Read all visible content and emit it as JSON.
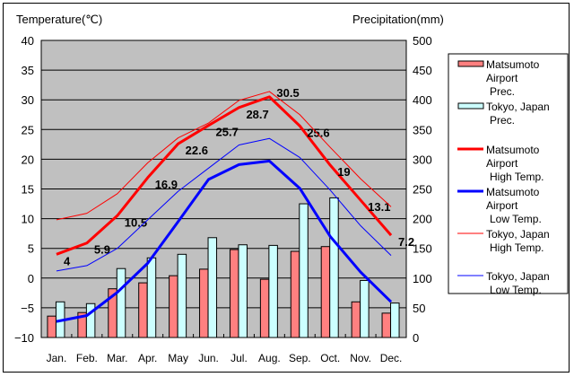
{
  "chart_data": {
    "type": "bar+line",
    "ylabel_left": "Temperature(℃)",
    "ylabel_right": "Precipitation(mm)",
    "ylim_left": [
      -10,
      40
    ],
    "yticks_left": [
      -10,
      -5,
      0,
      5,
      10,
      15,
      20,
      25,
      30,
      35,
      40
    ],
    "ylim_right": [
      0,
      500
    ],
    "yticks_right": [
      0,
      50,
      100,
      150,
      200,
      250,
      300,
      350,
      400,
      450,
      500
    ],
    "grid": true,
    "legend_position": "right",
    "categories": [
      "Jan.",
      "Feb.",
      "Mar.",
      "Apr.",
      "May",
      "Jun.",
      "Jul.",
      "Aug.",
      "Sep.",
      "Oct.",
      "Nov.",
      "Dec."
    ],
    "bar_series": [
      {
        "name": "Matsumoto Airport Prec.",
        "legend": [
          "Matsumoto",
          "Airport",
          "Prec."
        ],
        "color": "#ff8080",
        "values": [
          36,
          42,
          82,
          92,
          104,
          115,
          148,
          98,
          145,
          153,
          60,
          41
        ]
      },
      {
        "name": "Tokyo, Japan Prec.",
        "legend": [
          "Tokyo, Japan",
          "Prec."
        ],
        "color": "#ccffff",
        "values": [
          60,
          57,
          116,
          134,
          140,
          168,
          156,
          155,
          225,
          235,
          96,
          58
        ]
      }
    ],
    "line_series": [
      {
        "name": "Matsumoto Airport High Temp.",
        "legend": [
          "Matsumoto",
          "Airport",
          "High Temp."
        ],
        "color": "#ff0000",
        "width": 3,
        "values": [
          4,
          5.9,
          10.5,
          16.9,
          22.6,
          25.7,
          28.7,
          30.5,
          25.6,
          19,
          13.1,
          7.2
        ],
        "labels": [
          "4",
          "5.9",
          "10.5",
          "16.9",
          "22.6",
          "25.7",
          "28.7",
          "30.5",
          "25.6",
          "19",
          "13.1",
          "7.2"
        ]
      },
      {
        "name": "Matsumoto Airport Low Temp.",
        "legend": [
          "Matsumoto",
          "Airport",
          "Low Temp."
        ],
        "color": "#0000ff",
        "width": 3,
        "values": [
          -7.3,
          -6.3,
          -2.4,
          2.5,
          9.5,
          16.6,
          19.1,
          19.7,
          15.1,
          7.0,
          1.0,
          -4.0
        ]
      },
      {
        "name": "Tokyo, Japan High Temp.",
        "legend": [
          "Tokyo, Japan",
          "High Temp."
        ],
        "color": "#ff0000",
        "width": 1,
        "values": [
          9.8,
          10.9,
          14.2,
          19.4,
          23.6,
          26.1,
          29.9,
          31.4,
          27.5,
          22.0,
          16.7,
          12.0
        ]
      },
      {
        "name": "Tokyo, Japan Low Temp.",
        "legend": [
          "Tokyo, Japan",
          "Low Temp."
        ],
        "color": "#0000ff",
        "width": 1,
        "values": [
          1.2,
          2.1,
          5.0,
          9.8,
          14.6,
          18.5,
          22.4,
          23.5,
          20.3,
          14.8,
          8.8,
          3.8
        ]
      }
    ]
  }
}
